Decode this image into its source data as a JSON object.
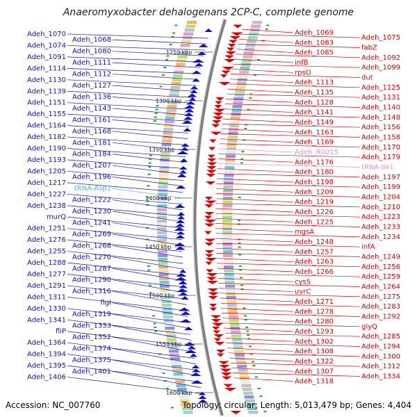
{
  "title": "Anaeromyxobacter dehalogenans 2CP-C, complete genome",
  "footer": {
    "accession": "Accession: NC_007760",
    "topology": "Topology: circular; Length: 5,013,479 bp; Genes: 4,404"
  },
  "ticks": [
    "1250 kbp",
    "1300 kbp",
    "1350 kbp",
    "1400 kbp",
    "1450 kbp",
    "1500 kbp",
    "1550 kbp",
    "1600 kbp"
  ],
  "left_labels": [
    {
      "text": "Adeh_1070",
      "c": "blue"
    },
    {
      "text": "Adeh_1068",
      "c": "blue"
    },
    {
      "text": "Adeh_1074",
      "c": "blue"
    },
    {
      "text": "Adeh_1080",
      "c": "blue"
    },
    {
      "text": "Adeh_1091",
      "c": "blue"
    },
    {
      "text": "Adeh_1111",
      "c": "blue"
    },
    {
      "text": "Adeh_1114",
      "c": "blue"
    },
    {
      "text": "Adeh_1112",
      "c": "blue"
    },
    {
      "text": "Adeh_1130",
      "c": "blue"
    },
    {
      "text": "Adeh_1127",
      "c": "blue"
    },
    {
      "text": "Adeh_1139",
      "c": "blue"
    },
    {
      "text": "Adeh_1136",
      "c": "blue"
    },
    {
      "text": "Adeh_1151",
      "c": "blue"
    },
    {
      "text": "Adeh_1143",
      "c": "blue"
    },
    {
      "text": "Adeh_1155",
      "c": "blue"
    },
    {
      "text": "Adeh_1161",
      "c": "blue"
    },
    {
      "text": "Adeh_1164",
      "c": "blue"
    },
    {
      "text": "Adeh_1168",
      "c": "blue"
    },
    {
      "text": "Adeh_1182",
      "c": "blue"
    },
    {
      "text": "Adeh_1181",
      "c": "blue"
    },
    {
      "text": "Adeh_1190",
      "c": "blue"
    },
    {
      "text": "Adeh_1184",
      "c": "blue"
    },
    {
      "text": "Adeh_1193",
      "c": "blue"
    },
    {
      "text": "Adeh_1207",
      "c": "blue"
    },
    {
      "text": "Adeh_1205",
      "c": "blue"
    },
    {
      "text": "Adeh_1196",
      "c": "blue"
    },
    {
      "text": "Adeh_1217",
      "c": "blue"
    },
    {
      "text": "tRNA-Asp1",
      "c": "cyan"
    },
    {
      "text": "Adeh_1227",
      "c": "blue"
    },
    {
      "text": "Adeh_1222",
      "c": "blue"
    },
    {
      "text": "Adeh_1238",
      "c": "blue"
    },
    {
      "text": "Adeh_1230",
      "c": "blue"
    },
    {
      "text": "murQ",
      "c": "blue"
    },
    {
      "text": "Adeh_1241",
      "c": "blue"
    },
    {
      "text": "Adeh_1251",
      "c": "blue"
    },
    {
      "text": "Adeh_1269",
      "c": "blue"
    },
    {
      "text": "Adeh_1276",
      "c": "blue"
    },
    {
      "text": "Adeh_1268",
      "c": "blue"
    },
    {
      "text": "Adeh_1255",
      "c": "blue"
    },
    {
      "text": "Adeh_1270",
      "c": "blue"
    },
    {
      "text": "Adeh_1288",
      "c": "blue"
    },
    {
      "text": "Adeh_1287",
      "c": "blue"
    },
    {
      "text": "Adeh_1277",
      "c": "blue"
    },
    {
      "text": "Adeh_1290",
      "c": "blue"
    },
    {
      "text": "Adeh_1291",
      "c": "blue"
    },
    {
      "text": "Adeh_1316",
      "c": "blue"
    },
    {
      "text": "Adeh_1311",
      "c": "blue"
    },
    {
      "text": "flgI",
      "c": "blue"
    },
    {
      "text": "Adeh_1330",
      "c": "blue"
    },
    {
      "text": "Adeh_1319",
      "c": "blue"
    },
    {
      "text": "Adeh_1341",
      "c": "blue"
    },
    {
      "text": "Adeh_1333",
      "c": "blue"
    },
    {
      "text": "fliP",
      "c": "blue"
    },
    {
      "text": "Adeh_1352",
      "c": "blue"
    },
    {
      "text": "Adeh_1364",
      "c": "blue"
    },
    {
      "text": "Adeh_1374",
      "c": "blue"
    },
    {
      "text": "Adeh_1394",
      "c": "blue"
    },
    {
      "text": "Adeh_1375",
      "c": "blue"
    },
    {
      "text": "Adeh_1395",
      "c": "blue"
    },
    {
      "text": "Adeh_1401",
      "c": "blue"
    },
    {
      "text": "Adeh_1406",
      "c": "blue"
    }
  ],
  "right_labels": [
    {
      "text": "Adeh_1069",
      "c": "red"
    },
    {
      "text": "Adeh_1075",
      "c": "red"
    },
    {
      "text": "Adeh_1083",
      "c": "red"
    },
    {
      "text": "fabZ",
      "c": "red"
    },
    {
      "text": "Adeh_1085",
      "c": "red"
    },
    {
      "text": "Adeh_1092",
      "c": "red"
    },
    {
      "text": "infB",
      "c": "red"
    },
    {
      "text": "Adeh_1099",
      "c": "red"
    },
    {
      "text": "rpsO",
      "c": "red"
    },
    {
      "text": "dut",
      "c": "red"
    },
    {
      "text": "Adeh_1113",
      "c": "red"
    },
    {
      "text": "Adeh_1125",
      "c": "red"
    },
    {
      "text": "Adeh_1135",
      "c": "red"
    },
    {
      "text": "Adeh_1131",
      "c": "red"
    },
    {
      "text": "Adeh_1128",
      "c": "red"
    },
    {
      "text": "Adeh_1140",
      "c": "red"
    },
    {
      "text": "Adeh_1141",
      "c": "red"
    },
    {
      "text": "Adeh_1148",
      "c": "red"
    },
    {
      "text": "Adeh_1149",
      "c": "red"
    },
    {
      "text": "Adeh_1156",
      "c": "red"
    },
    {
      "text": "Adeh_1163",
      "c": "red"
    },
    {
      "text": "Adeh_1158",
      "c": "red"
    },
    {
      "text": "Adeh_1169",
      "c": "red"
    },
    {
      "text": "Adeh_1170",
      "c": "red"
    },
    {
      "text": "Adeh_R0015",
      "c": "pink"
    },
    {
      "text": "Adeh_1179",
      "c": "red"
    },
    {
      "text": "Adeh_1176",
      "c": "red"
    },
    {
      "text": "tRNA-Ile1",
      "c": "pink"
    },
    {
      "text": "Adeh_1180",
      "c": "red"
    },
    {
      "text": "Adeh_1197",
      "c": "red"
    },
    {
      "text": "Adeh_1198",
      "c": "red"
    },
    {
      "text": "Adeh_1199",
      "c": "red"
    },
    {
      "text": "Adeh_1209",
      "c": "red"
    },
    {
      "text": "Adeh_1204",
      "c": "red"
    },
    {
      "text": "Adeh_1219",
      "c": "red"
    },
    {
      "text": "Adeh_1210",
      "c": "red"
    },
    {
      "text": "Adeh_1226",
      "c": "red"
    },
    {
      "text": "Adeh_1223",
      "c": "red"
    },
    {
      "text": "Adeh_1225",
      "c": "red"
    },
    {
      "text": "Adeh_1233",
      "c": "red"
    },
    {
      "text": "mgsA",
      "c": "red"
    },
    {
      "text": "Adeh_1234",
      "c": "red"
    },
    {
      "text": "Adeh_1248",
      "c": "red"
    },
    {
      "text": "infA",
      "c": "red"
    },
    {
      "text": "Adeh_1257",
      "c": "red"
    },
    {
      "text": "Adeh_1249",
      "c": "red"
    },
    {
      "text": "Adeh_1263",
      "c": "red"
    },
    {
      "text": "Adeh_1256",
      "c": "red"
    },
    {
      "text": "Adeh_1266",
      "c": "red"
    },
    {
      "text": "Adeh_1259",
      "c": "red"
    },
    {
      "text": "cysS",
      "c": "red"
    },
    {
      "text": "Adeh_1264",
      "c": "red"
    },
    {
      "text": "uvrC",
      "c": "red"
    },
    {
      "text": "Adeh_1275",
      "c": "red"
    },
    {
      "text": "Adeh_1271",
      "c": "red"
    },
    {
      "text": "Adeh_1283",
      "c": "red"
    },
    {
      "text": "Adeh_1278",
      "c": "red"
    },
    {
      "text": "Adeh_1292",
      "c": "red"
    },
    {
      "text": "Adeh_1280",
      "c": "red"
    },
    {
      "text": "glyQ",
      "c": "red"
    },
    {
      "text": "Adeh_1293",
      "c": "red"
    },
    {
      "text": "Adeh_1285",
      "c": "red"
    },
    {
      "text": "Adeh_1302",
      "c": "red"
    },
    {
      "text": "Adeh_1294",
      "c": "red"
    },
    {
      "text": "Adeh_1308",
      "c": "red"
    },
    {
      "text": "Adeh_1300",
      "c": "red"
    },
    {
      "text": "Adeh_1322",
      "c": "red"
    },
    {
      "text": "Adeh_1312",
      "c": "red"
    },
    {
      "text": "Adeh_1307",
      "c": "red"
    },
    {
      "text": "Adeh_1334",
      "c": "red"
    },
    {
      "text": "Adeh_1318",
      "c": "red"
    }
  ],
  "colors": {
    "forward_strand": "#e00000",
    "reverse_strand": "#1010c8",
    "tRNA_left": "#4ab8e0",
    "tRNA_right": "#e890c0",
    "backbone": "#808080",
    "gc_marker": "#22aa22"
  }
}
